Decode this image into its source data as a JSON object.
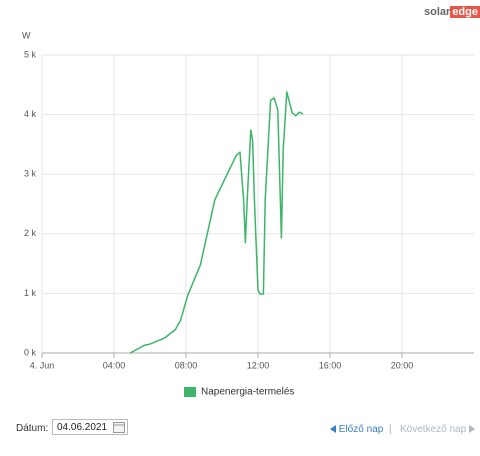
{
  "logo": {
    "left": "solar",
    "right": "edge"
  },
  "chart_data": {
    "type": "line",
    "y_label": "W",
    "x": [
      4.9,
      5.7,
      6.0,
      6.8,
      7.4,
      7.7,
      8.1,
      8.8,
      9.6,
      10.4,
      10.8,
      11.0,
      11.2,
      11.3,
      11.4,
      11.6,
      11.7,
      11.8,
      12.0,
      12.1,
      12.3,
      12.4,
      12.7,
      12.9,
      13.1,
      13.3,
      13.4,
      13.6,
      13.9,
      14.1,
      14.3,
      14.5
    ],
    "series": [
      {
        "name": "Napenergia-termelés",
        "color": "#3db56a",
        "values": [
          0,
          130,
          150,
          250,
          390,
          550,
          970,
          1480,
          2570,
          3070,
          3320,
          3370,
          2570,
          1850,
          2570,
          3740,
          3570,
          2570,
          1060,
          990,
          990,
          2570,
          4240,
          4280,
          4080,
          1930,
          3410,
          4380,
          4030,
          3980,
          4040,
          4010
        ]
      }
    ],
    "xlim": [
      0,
      24
    ],
    "xticks": [
      {
        "value": 0,
        "label": "4. Jun"
      },
      {
        "value": 4,
        "label": "04:00"
      },
      {
        "value": 8,
        "label": "08:00"
      },
      {
        "value": 12,
        "label": "12:00"
      },
      {
        "value": 16,
        "label": "16:00"
      },
      {
        "value": 20,
        "label": "20:00"
      }
    ],
    "ylim": [
      0,
      5000
    ],
    "yticks": [
      {
        "value": 0,
        "label": "0 k"
      },
      {
        "value": 1000,
        "label": "1 k"
      },
      {
        "value": 2000,
        "label": "2 k"
      },
      {
        "value": 3000,
        "label": "3 k"
      },
      {
        "value": 4000,
        "label": "4 k"
      },
      {
        "value": 5000,
        "label": "5 k"
      }
    ],
    "grid": true
  },
  "date_label": "Dátum:",
  "date_value": "04.06.2021",
  "prev": "Előző nap",
  "separator": "|",
  "next": "Következő nap"
}
